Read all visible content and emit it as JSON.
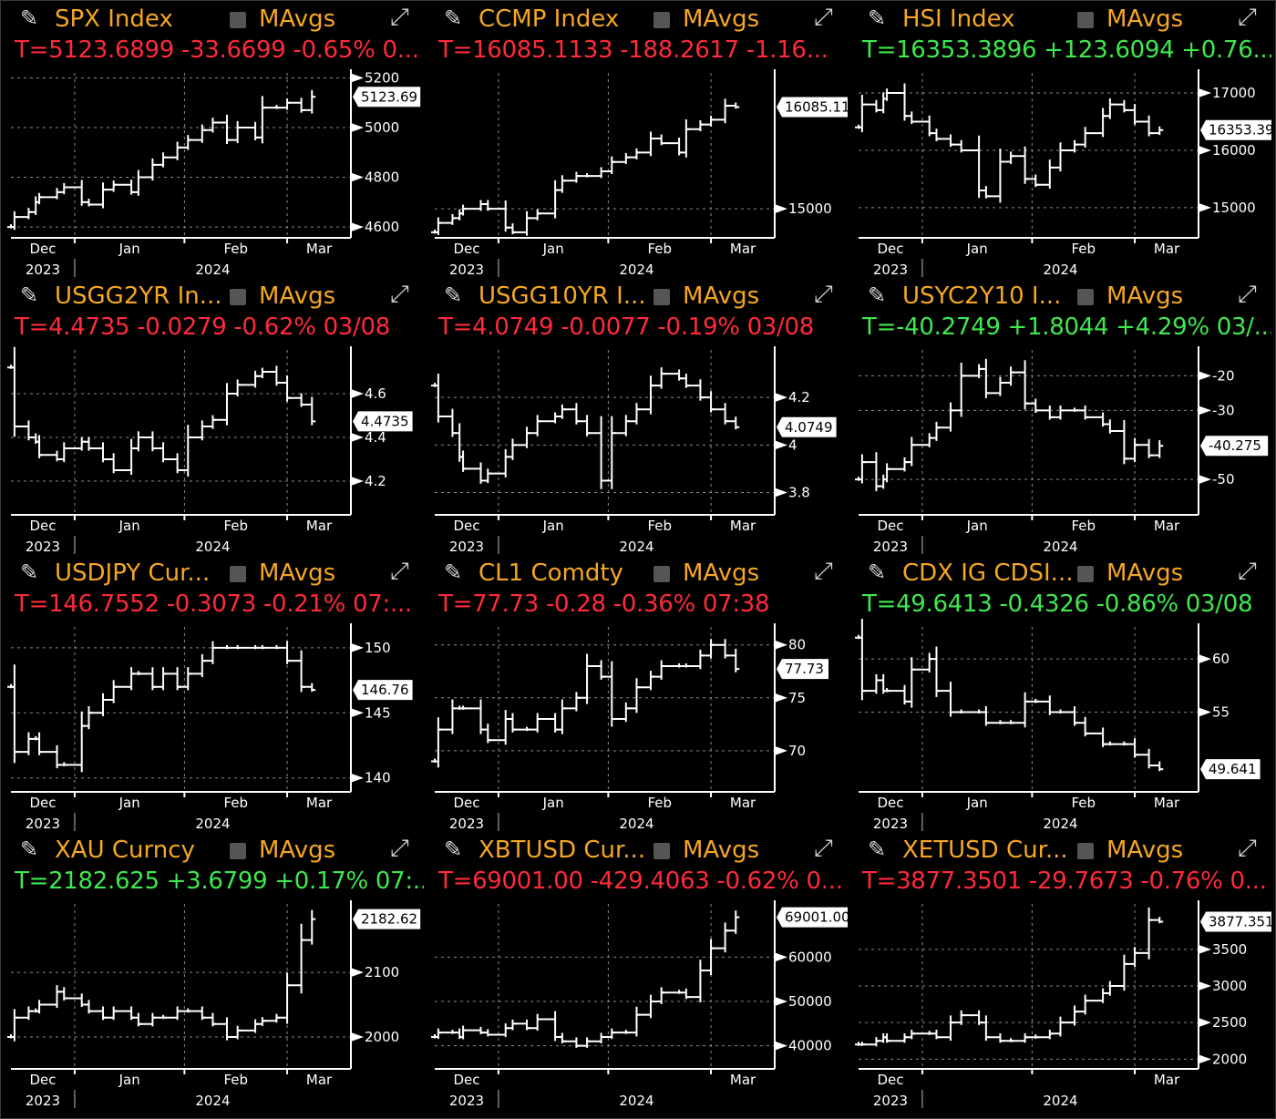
{
  "colors": {
    "title": "#f5a623",
    "down": "#ff2a3a",
    "up": "#3ee84e",
    "line": "#ffffff",
    "grid": "#8a8a8a"
  },
  "icons": {
    "edit": "pencil-icon",
    "toggle": "checkbox-icon",
    "expand": "expand-arrows-icon"
  },
  "mavgs_label": "MAvgs",
  "chart_data": [
    {
      "type": "line",
      "title": "SPX Index",
      "change": "T=5123.6899 -33.6699 -0.65% 0...",
      "direction": "down",
      "last_label": "5123.69",
      "ylim": [
        4560,
        5220
      ],
      "yticks": [
        4600,
        4800,
        5000,
        5200
      ],
      "months": [
        "Dec",
        "Jan",
        "Feb",
        "Mar"
      ],
      "years": [
        "2023",
        "2024"
      ],
      "x": [
        "2023-12-14",
        "2023-12-15",
        "2023-12-19",
        "2023-12-21",
        "2023-12-22",
        "2023-12-27",
        "2023-12-29",
        "2024-01-03",
        "2024-01-05",
        "2024-01-09",
        "2024-01-12",
        "2024-01-17",
        "2024-01-19",
        "2024-01-23",
        "2024-01-26",
        "2024-01-30",
        "2024-02-02",
        "2024-02-06",
        "2024-02-09",
        "2024-02-13",
        "2024-02-16",
        "2024-02-21",
        "2024-02-23",
        "2024-02-27",
        "2024-03-01",
        "2024-03-05",
        "2024-03-08"
      ],
      "y": [
        4600,
        4640,
        4660,
        4700,
        4720,
        4740,
        4760,
        4700,
        4690,
        4750,
        4770,
        4740,
        4800,
        4850,
        4880,
        4920,
        4950,
        4990,
        5020,
        4950,
        5000,
        4960,
        5080,
        5080,
        5100,
        5070,
        5123.69
      ]
    },
    {
      "type": "line",
      "title": "CCMP Index",
      "change": "T=16085.1133 -188.2617 -1.16...",
      "direction": "down",
      "last_label": "16085.11",
      "ylim": [
        14700,
        16450
      ],
      "yticks": [
        15000
      ],
      "months": [
        "Dec",
        "Jan",
        "Feb",
        "Mar"
      ],
      "years": [
        "2023",
        "2024"
      ],
      "x": [
        "2023-12-14",
        "2023-12-15",
        "2023-12-19",
        "2023-12-21",
        "2023-12-22",
        "2023-12-27",
        "2023-12-29",
        "2024-01-03",
        "2024-01-05",
        "2024-01-09",
        "2024-01-12",
        "2024-01-17",
        "2024-01-19",
        "2024-01-23",
        "2024-01-26",
        "2024-01-30",
        "2024-02-02",
        "2024-02-06",
        "2024-02-09",
        "2024-02-13",
        "2024-02-16",
        "2024-02-21",
        "2024-02-23",
        "2024-02-27",
        "2024-03-01",
        "2024-03-05",
        "2024-03-08"
      ],
      "y": [
        14750,
        14850,
        14900,
        14950,
        15000,
        15050,
        15000,
        14800,
        14750,
        14900,
        14950,
        15200,
        15300,
        15350,
        15350,
        15400,
        15500,
        15550,
        15600,
        15750,
        15700,
        15600,
        15850,
        15900,
        15950,
        16100,
        16085.11
      ]
    },
    {
      "type": "line",
      "title": "HSI Index",
      "change": "T=16353.3896 +123.6094 +0.76...",
      "direction": "up",
      "last_label": "16353.39",
      "ylim": [
        14490,
        17350
      ],
      "yticks": [
        15000,
        16000,
        17000
      ],
      "months": [
        "Dec",
        "Jan",
        "Feb",
        "Mar"
      ],
      "years": [
        "2023",
        "2024"
      ],
      "x": [
        "2023-12-14",
        "2023-12-15",
        "2023-12-19",
        "2023-12-21",
        "2023-12-22",
        "2023-12-27",
        "2023-12-29",
        "2024-01-03",
        "2024-01-05",
        "2024-01-09",
        "2024-01-12",
        "2024-01-17",
        "2024-01-19",
        "2024-01-23",
        "2024-01-26",
        "2024-01-30",
        "2024-02-02",
        "2024-02-06",
        "2024-02-09",
        "2024-02-13",
        "2024-02-16",
        "2024-02-21",
        "2024-02-23",
        "2024-02-27",
        "2024-03-01",
        "2024-03-05",
        "2024-03-08"
      ],
      "y": [
        16400,
        16800,
        16700,
        16900,
        17000,
        16600,
        16500,
        16300,
        16200,
        16100,
        16000,
        15300,
        15200,
        15800,
        15900,
        15500,
        15400,
        15700,
        16000,
        16100,
        16300,
        16600,
        16800,
        16700,
        16500,
        16300,
        16353.39
      ]
    },
    {
      "type": "line",
      "title": "USGG2YR In...",
      "change": "T=4.4735 -0.0279 -0.62% 03/08",
      "direction": "down",
      "last_label": "4.4735",
      "ylim": [
        4.05,
        4.8
      ],
      "yticks": [
        4.2,
        4.4,
        4.6
      ],
      "months": [
        "Dec",
        "Jan",
        "Feb",
        "Mar"
      ],
      "years": [
        "2023",
        "2024"
      ],
      "x": [
        "2023-12-14",
        "2023-12-15",
        "2023-12-19",
        "2023-12-21",
        "2023-12-22",
        "2023-12-27",
        "2023-12-29",
        "2024-01-03",
        "2024-01-05",
        "2024-01-09",
        "2024-01-12",
        "2024-01-17",
        "2024-01-19",
        "2024-01-23",
        "2024-01-26",
        "2024-01-30",
        "2024-02-02",
        "2024-02-06",
        "2024-02-09",
        "2024-02-13",
        "2024-02-16",
        "2024-02-21",
        "2024-02-23",
        "2024-02-27",
        "2024-03-01",
        "2024-03-05",
        "2024-03-08"
      ],
      "y": [
        4.72,
        4.45,
        4.4,
        4.38,
        4.32,
        4.3,
        4.35,
        4.38,
        4.35,
        4.3,
        4.25,
        4.35,
        4.4,
        4.35,
        4.3,
        4.25,
        4.4,
        4.45,
        4.48,
        4.6,
        4.64,
        4.68,
        4.7,
        4.65,
        4.58,
        4.55,
        4.4735
      ]
    },
    {
      "type": "line",
      "title": "USGG10YR I...",
      "change": "T=4.0749 -0.0077 -0.19% 03/08",
      "direction": "down",
      "last_label": "4.0749",
      "ylim": [
        3.71,
        4.4
      ],
      "yticks": [
        3.8,
        4.0,
        4.2
      ],
      "months": [
        "Dec",
        "Jan",
        "Feb",
        "Mar"
      ],
      "years": [
        "2023",
        "2024"
      ],
      "x": [
        "2023-12-14",
        "2023-12-15",
        "2023-12-19",
        "2023-12-21",
        "2023-12-22",
        "2023-12-27",
        "2023-12-29",
        "2024-01-03",
        "2024-01-05",
        "2024-01-09",
        "2024-01-12",
        "2024-01-17",
        "2024-01-19",
        "2024-01-23",
        "2024-01-26",
        "2024-01-30",
        "2024-02-02",
        "2024-02-06",
        "2024-02-09",
        "2024-02-13",
        "2024-02-16",
        "2024-02-21",
        "2024-02-23",
        "2024-02-27",
        "2024-03-01",
        "2024-03-05",
        "2024-03-08"
      ],
      "y": [
        4.25,
        4.12,
        4.05,
        3.95,
        3.9,
        3.85,
        3.88,
        3.95,
        4.0,
        4.05,
        4.1,
        4.12,
        4.15,
        4.1,
        4.05,
        3.85,
        4.05,
        4.1,
        4.15,
        4.25,
        4.3,
        4.28,
        4.25,
        4.2,
        4.15,
        4.1,
        4.0749
      ]
    },
    {
      "type": "line",
      "title": "USYC2Y10 I...",
      "change": "T=-40.2749 +1.8044 +4.29% 03/...",
      "direction": "up",
      "last_label": "-40.275",
      "ylim": [
        -60,
        -12.5
      ],
      "yticks": [
        -50,
        -30,
        -20
      ],
      "months": [
        "Dec",
        "Jan",
        "Feb",
        "Mar"
      ],
      "years": [
        "2023",
        "2024"
      ],
      "x": [
        "2023-12-14",
        "2023-12-15",
        "2023-12-19",
        "2023-12-21",
        "2023-12-22",
        "2023-12-27",
        "2023-12-29",
        "2024-01-03",
        "2024-01-05",
        "2024-01-09",
        "2024-01-12",
        "2024-01-17",
        "2024-01-19",
        "2024-01-23",
        "2024-01-26",
        "2024-01-30",
        "2024-02-02",
        "2024-02-06",
        "2024-02-09",
        "2024-02-13",
        "2024-02-16",
        "2024-02-21",
        "2024-02-23",
        "2024-02-27",
        "2024-03-01",
        "2024-03-05",
        "2024-03-08"
      ],
      "y": [
        -50,
        -45,
        -52,
        -50,
        -47,
        -45,
        -40,
        -38,
        -35,
        -30,
        -20,
        -18,
        -25,
        -22,
        -19,
        -28,
        -30,
        -32,
        -30,
        -30,
        -32,
        -34,
        -36,
        -44,
        -40,
        -43,
        -40.27
      ]
    },
    {
      "type": "line",
      "title": "USDJPY Cur...",
      "change": "T=146.7552 -0.3073 -0.21% 07:...",
      "direction": "down",
      "last_label": "146.76",
      "ylim": [
        139,
        151.6
      ],
      "yticks": [
        140,
        145,
        150
      ],
      "months": [
        "Dec",
        "Jan",
        "Feb",
        "Mar"
      ],
      "years": [
        "2023",
        "2024"
      ],
      "x": [
        "2023-12-14",
        "2023-12-15",
        "2023-12-19",
        "2023-12-21",
        "2023-12-22",
        "2023-12-27",
        "2023-12-29",
        "2024-01-03",
        "2024-01-05",
        "2024-01-09",
        "2024-01-12",
        "2024-01-17",
        "2024-01-19",
        "2024-01-23",
        "2024-01-26",
        "2024-01-30",
        "2024-02-02",
        "2024-02-06",
        "2024-02-09",
        "2024-02-13",
        "2024-02-16",
        "2024-02-21",
        "2024-02-23",
        "2024-02-27",
        "2024-03-01",
        "2024-03-05",
        "2024-03-08"
      ],
      "y": [
        147,
        142,
        143,
        143,
        142,
        141,
        141,
        144,
        145,
        146,
        147,
        148,
        148,
        147,
        148,
        147,
        148,
        149,
        150,
        150,
        150,
        150,
        150,
        150,
        149,
        147,
        146.76
      ]
    },
    {
      "type": "line",
      "title": "CL1 Comdty",
      "change": "T=77.73 -0.28 -0.36% 07:38",
      "direction": "down",
      "last_label": "77.73",
      "ylim": [
        66.2,
        81.7
      ],
      "yticks": [
        70,
        75,
        80
      ],
      "months": [
        "Dec",
        "Jan",
        "Feb",
        "Mar"
      ],
      "years": [
        "2023",
        "2024"
      ],
      "x": [
        "2023-12-14",
        "2023-12-15",
        "2023-12-19",
        "2023-12-21",
        "2023-12-22",
        "2023-12-27",
        "2023-12-29",
        "2024-01-03",
        "2024-01-05",
        "2024-01-09",
        "2024-01-12",
        "2024-01-17",
        "2024-01-19",
        "2024-01-23",
        "2024-01-26",
        "2024-01-30",
        "2024-02-02",
        "2024-02-06",
        "2024-02-09",
        "2024-02-13",
        "2024-02-16",
        "2024-02-21",
        "2024-02-23",
        "2024-02-27",
        "2024-03-01",
        "2024-03-05",
        "2024-03-08"
      ],
      "y": [
        69,
        72,
        74,
        74,
        74,
        72,
        71,
        73,
        72,
        72,
        73,
        72,
        74,
        75,
        78,
        77,
        73,
        74,
        76,
        77,
        78,
        78,
        78,
        79,
        80,
        79,
        77.73
      ]
    },
    {
      "type": "line",
      "title": "CDX IG CDSI...",
      "change": "T=49.6413 -0.4326 -0.86% 03/08",
      "direction": "up",
      "last_label": "49.641",
      "ylim": [
        47.6,
        63
      ],
      "yticks": [
        55,
        60
      ],
      "months": [
        "Dec",
        "Jan",
        "Feb",
        "Mar"
      ],
      "years": [
        "2023",
        "2024"
      ],
      "x": [
        "2023-12-14",
        "2023-12-15",
        "2023-12-19",
        "2023-12-21",
        "2023-12-22",
        "2023-12-27",
        "2023-12-29",
        "2024-01-03",
        "2024-01-05",
        "2024-01-09",
        "2024-01-12",
        "2024-01-17",
        "2024-01-19",
        "2024-01-23",
        "2024-01-26",
        "2024-01-30",
        "2024-02-02",
        "2024-02-06",
        "2024-02-09",
        "2024-02-13",
        "2024-02-16",
        "2024-02-21",
        "2024-02-23",
        "2024-02-27",
        "2024-03-01",
        "2024-03-05",
        "2024-03-08"
      ],
      "y": [
        62,
        57,
        58,
        57,
        57,
        56,
        59,
        60,
        57,
        55,
        55,
        55,
        54,
        54,
        54,
        56,
        56,
        55,
        55,
        54,
        53,
        52,
        52,
        52,
        51,
        50,
        49.64
      ]
    },
    {
      "type": "line",
      "title": "XAU Curncy",
      "change": "T=2182.625 +3.6799 +0.17% 07:...",
      "direction": "up",
      "last_label": "2182.62",
      "ylim": [
        1952,
        2206
      ],
      "yticks": [
        2000,
        2100
      ],
      "months": [
        "Dec",
        "Jan",
        "Feb",
        "Mar"
      ],
      "years": [
        "2023",
        "2024"
      ],
      "x": [
        "2023-12-14",
        "2023-12-15",
        "2023-12-19",
        "2023-12-21",
        "2023-12-22",
        "2023-12-27",
        "2023-12-29",
        "2024-01-03",
        "2024-01-05",
        "2024-01-09",
        "2024-01-12",
        "2024-01-17",
        "2024-01-19",
        "2024-01-23",
        "2024-01-26",
        "2024-01-30",
        "2024-02-02",
        "2024-02-06",
        "2024-02-09",
        "2024-02-13",
        "2024-02-16",
        "2024-02-21",
        "2024-02-23",
        "2024-02-27",
        "2024-03-01",
        "2024-03-05",
        "2024-03-08"
      ],
      "y": [
        2000,
        2030,
        2040,
        2040,
        2050,
        2070,
        2060,
        2050,
        2040,
        2030,
        2040,
        2030,
        2020,
        2030,
        2030,
        2040,
        2040,
        2030,
        2020,
        2000,
        2010,
        2020,
        2025,
        2030,
        2080,
        2150,
        2182.62
      ]
    },
    {
      "type": "line",
      "title": "XBTUSD Cur...",
      "change": "T=69001.00 -429.4063 -0.62% 0...",
      "direction": "down",
      "last_label": "69001.00",
      "ylim": [
        35000,
        72000
      ],
      "yticks": [
        40000,
        50000,
        60000
      ],
      "months": [
        "Dec",
        "",
        "",
        "Mar"
      ],
      "years": [
        "2023",
        "2024"
      ],
      "x": [
        "2023-12-14",
        "2023-12-15",
        "2023-12-19",
        "2023-12-21",
        "2023-12-22",
        "2023-12-27",
        "2023-12-29",
        "2024-01-03",
        "2024-01-05",
        "2024-01-09",
        "2024-01-12",
        "2024-01-17",
        "2024-01-19",
        "2024-01-23",
        "2024-01-26",
        "2024-01-30",
        "2024-02-02",
        "2024-02-06",
        "2024-02-09",
        "2024-02-13",
        "2024-02-16",
        "2024-02-21",
        "2024-02-23",
        "2024-02-27",
        "2024-03-01",
        "2024-03-05",
        "2024-03-08"
      ],
      "y": [
        42000,
        43000,
        43000,
        42000,
        43500,
        43000,
        42500,
        44000,
        45000,
        44000,
        46000,
        42000,
        41000,
        40000,
        41000,
        42000,
        43000,
        43000,
        47000,
        50000,
        52000,
        52000,
        51000,
        57000,
        62000,
        66000,
        69001
      ]
    },
    {
      "type": "line",
      "title": "XETUSD Cur...",
      "change": "T=3877.3501 -29.7673 -0.76% 0...",
      "direction": "down",
      "last_label": "3877.351",
      "ylim": [
        1880,
        4120
      ],
      "yticks": [
        2000,
        2500,
        3000,
        3500
      ],
      "months": [
        "Dec",
        "",
        "",
        "Mar"
      ],
      "years": [
        "2023",
        "2024"
      ],
      "x": [
        "2023-12-14",
        "2023-12-15",
        "2023-12-19",
        "2023-12-21",
        "2023-12-22",
        "2023-12-27",
        "2023-12-29",
        "2024-01-03",
        "2024-01-05",
        "2024-01-09",
        "2024-01-12",
        "2024-01-17",
        "2024-01-19",
        "2024-01-23",
        "2024-01-26",
        "2024-01-30",
        "2024-02-02",
        "2024-02-06",
        "2024-02-09",
        "2024-02-13",
        "2024-02-16",
        "2024-02-21",
        "2024-02-23",
        "2024-02-27",
        "2024-03-01",
        "2024-03-05",
        "2024-03-08"
      ],
      "y": [
        2200,
        2200,
        2250,
        2300,
        2250,
        2300,
        2350,
        2350,
        2300,
        2500,
        2600,
        2500,
        2300,
        2250,
        2250,
        2300,
        2300,
        2350,
        2500,
        2650,
        2800,
        2900,
        3000,
        3300,
        3450,
        3900,
        3877.35
      ]
    }
  ]
}
